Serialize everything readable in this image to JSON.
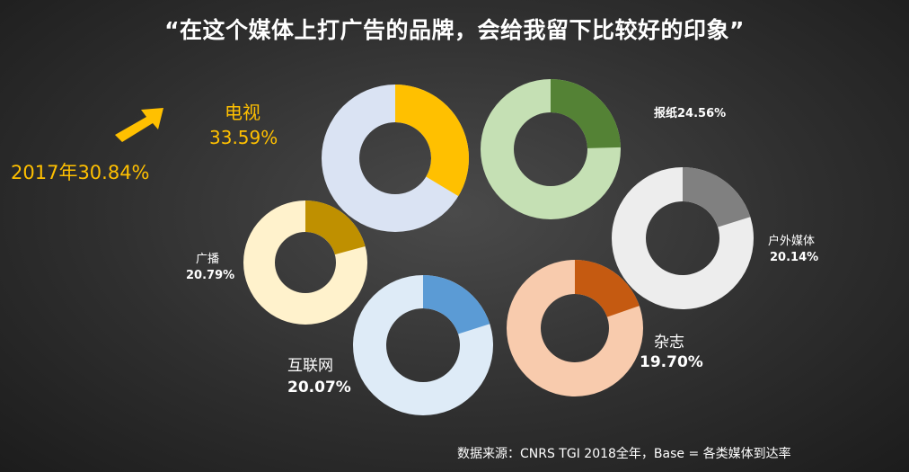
{
  "title": "“在这个媒体上打广告的品牌，会给我留下比较好的印象”",
  "source": "数据来源：CNRS TGI 2018全年，Base = 各类媒体到达率",
  "prev_year_note": "2017年30.84%",
  "labels": {
    "tv_name": "电视",
    "tv_value": "33.59%",
    "newspaper": "报纸24.56%",
    "outdoor_name": "户外媒体",
    "outdoor_value": "20.14%",
    "radio_name": "广播",
    "radio_value": "20.79%",
    "internet_name": "互联网",
    "internet_value": "20.07%",
    "magazine_name": "杂志",
    "magazine_value": "19.70%"
  },
  "chart_data": {
    "type": "donut",
    "title": "“在这个媒体上打广告的品牌，会给我留下比较好的印象”",
    "unit": "%",
    "series": [
      {
        "name": "电视",
        "value": 33.59,
        "color": "#ffc000",
        "track": "#dae3f3"
      },
      {
        "name": "报纸",
        "value": 24.56,
        "color": "#548235",
        "track": "#c5e0b4"
      },
      {
        "name": "户外媒体",
        "value": 20.14,
        "color": "#808080",
        "track": "#ededed"
      },
      {
        "name": "广播",
        "value": 20.79,
        "color": "#bf9000",
        "track": "#fff2cc"
      },
      {
        "name": "互联网",
        "value": 20.07,
        "color": "#5b9bd5",
        "track": "#deebf7"
      },
      {
        "name": "杂志",
        "value": 19.7,
        "color": "#c55a11",
        "track": "#f8cbad"
      }
    ],
    "annotations": [
      "2017年30.84%"
    ]
  }
}
